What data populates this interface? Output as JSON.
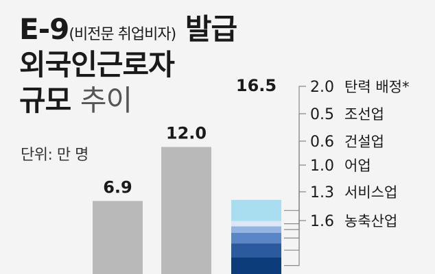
{
  "title": {
    "line1_main": "E-9",
    "line1_sub": "(비전문 취업비자)",
    "line1_end": "발급",
    "line2": "외국인근로자",
    "line3_main": "규모",
    "line3_light": "추이"
  },
  "unit_label": "단위: 만 명",
  "colors": {
    "gray_bar": "#b9b9b9",
    "leader": "#888888",
    "background": "#f4f4f4"
  },
  "chart_data": {
    "type": "bar",
    "stacked": true,
    "ylabel": "",
    "unit": "만 명",
    "ylim": [
      0,
      16.5
    ],
    "bars": [
      {
        "total_label": "6.9",
        "value": 6.9
      },
      {
        "total_label": "12.0",
        "value": 12.0
      },
      {
        "total_label": "16.5",
        "value": 16.5,
        "segments": [
          {
            "name": "농축산업",
            "value": 1.6,
            "label": "1.6",
            "color": "#0c3d7a"
          },
          {
            "name": "서비스업",
            "value": 1.3,
            "label": "1.3",
            "color": "#2b5a9e"
          },
          {
            "name": "어업",
            "value": 1.0,
            "label": "1.0",
            "color": "#5a86c6"
          },
          {
            "name": "건설업",
            "value": 0.6,
            "label": "0.6",
            "color": "#93b4e0"
          },
          {
            "name": "조선업",
            "value": 0.5,
            "label": "0.5",
            "color": "#dde6f6"
          },
          {
            "name": "탄력 배정*",
            "value": 2.0,
            "label": "2.0",
            "color": "#a9ddf0"
          }
        ]
      }
    ]
  }
}
